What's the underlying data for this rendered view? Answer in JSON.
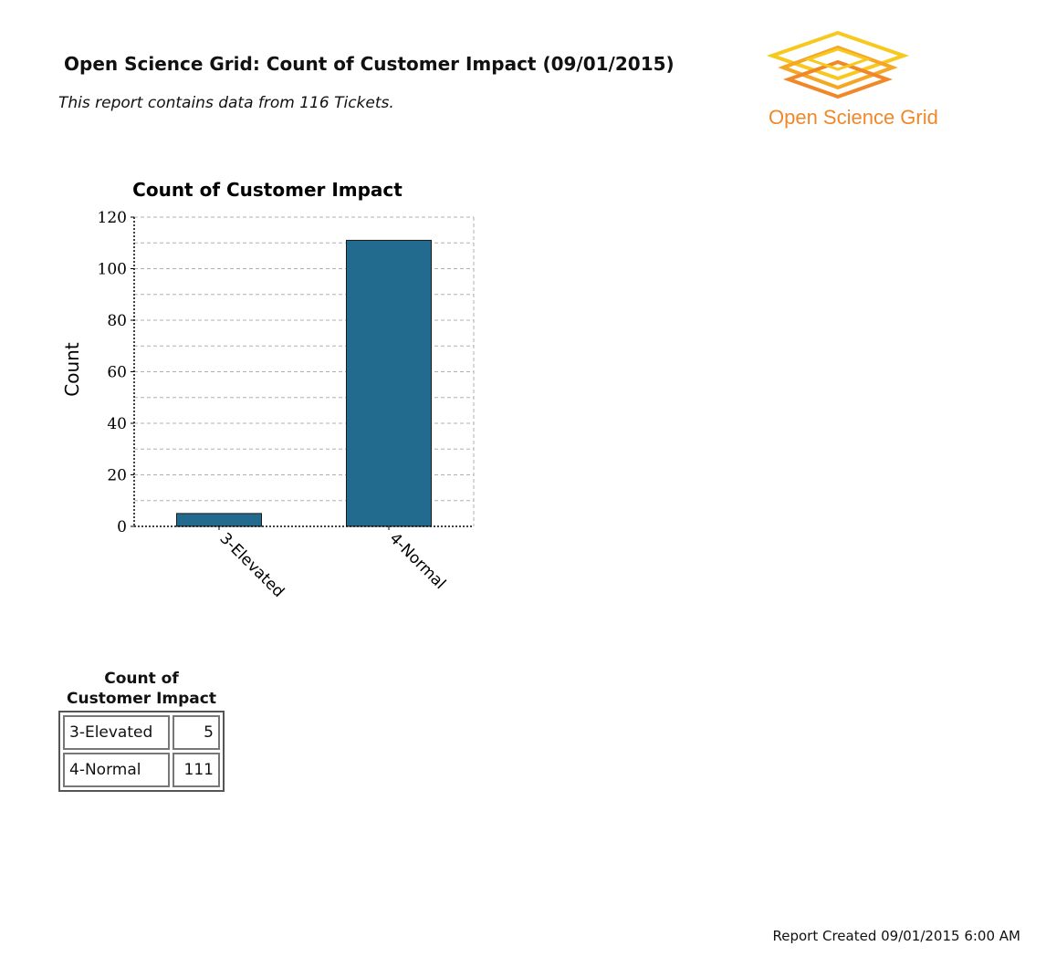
{
  "report": {
    "title": "Open Science Grid: Count of Customer Impact (09/01/2015)",
    "subtitle": "This report contains data from 116 Tickets.",
    "footer": "Report Created 09/01/2015 6:00 AM"
  },
  "logo": {
    "text": "Open Science Grid",
    "colors": [
      "#f7c81e",
      "#f5a623",
      "#f0882a"
    ]
  },
  "chart_data": {
    "type": "bar",
    "title": "Count of Customer Impact",
    "xlabel": "",
    "ylabel": "Count",
    "categories": [
      "3-Elevated",
      "4-Normal"
    ],
    "values": [
      5,
      111
    ],
    "ylim": [
      0,
      120
    ],
    "yticks": [
      0,
      20,
      40,
      60,
      80,
      100,
      120
    ],
    "grid": true,
    "bar_color": "#236b8e"
  },
  "table": {
    "caption_line1": "Count of",
    "caption_line2": "Customer Impact",
    "rows": [
      {
        "label": "3-Elevated",
        "value": "5"
      },
      {
        "label": "4-Normal",
        "value": "111"
      }
    ]
  }
}
